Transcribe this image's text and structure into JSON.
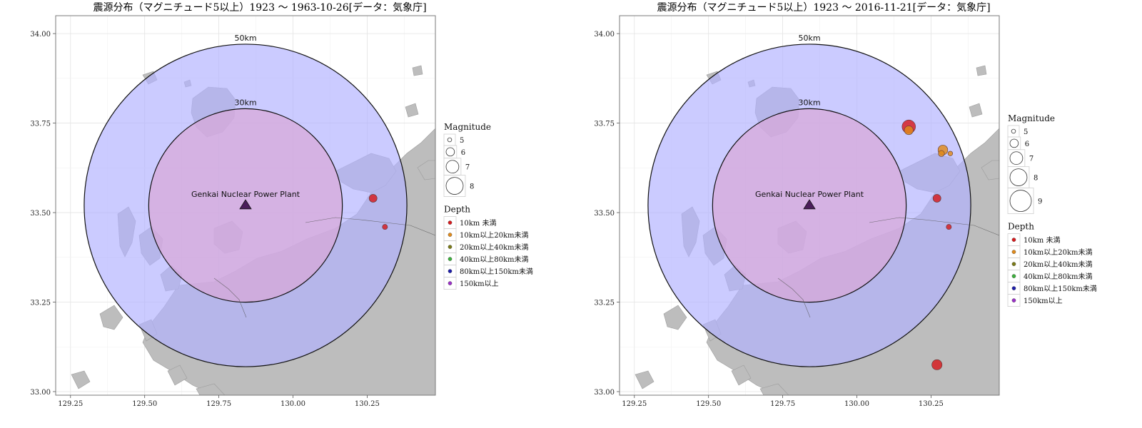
{
  "chart_data": [
    {
      "type": "scatter",
      "title": "震源分布（マグニチュード5以上）1923 ～ 1963-10-26[データ：気象庁]",
      "xlim": [
        129.2,
        130.48
      ],
      "ylim": [
        32.99,
        34.05
      ],
      "x_ticks": [
        "129.25",
        "129.50",
        "129.75",
        "130.00",
        "130.25"
      ],
      "y_ticks": [
        "33.00",
        "33.25",
        "33.50",
        "33.75",
        "34.00"
      ],
      "plant": {
        "name": "Genkai Nuclear Power Plant",
        "lon": 129.84,
        "lat": 33.52
      },
      "rings": [
        {
          "label": "50km",
          "radius_km": 50,
          "color": "#b3b3ff"
        },
        {
          "label": "30km",
          "radius_km": 30,
          "color": "#d8a8d8"
        }
      ],
      "legend_size": {
        "title": "Magnitude",
        "items": [
          "5",
          "6",
          "7",
          "8"
        ]
      },
      "legend_depth": {
        "title": "Depth",
        "items": [
          {
            "label": "10km 未満",
            "color": "#d7191c"
          },
          {
            "label": "10km以上20km未満",
            "color": "#e08a1a"
          },
          {
            "label": "20km以上40km未満",
            "color": "#7a7a16"
          },
          {
            "label": "40km以上80km未満",
            "color": "#3cb03c"
          },
          {
            "label": "80km以上150km未満",
            "color": "#1d1daa"
          },
          {
            "label": "150km以上",
            "color": "#9b30c8"
          }
        ]
      },
      "points": [
        {
          "lon": 130.27,
          "lat": 33.54,
          "mag": 5.8,
          "depth": "10km 未満"
        },
        {
          "lon": 130.31,
          "lat": 33.46,
          "mag": 5.2,
          "depth": "10km 未満"
        }
      ]
    },
    {
      "type": "scatter",
      "title": "震源分布（マグニチュード5以上）1923 ～ 2016-11-21[データ：気象庁]",
      "xlim": [
        129.2,
        130.48
      ],
      "ylim": [
        32.99,
        34.05
      ],
      "x_ticks": [
        "129.25",
        "129.50",
        "129.75",
        "130.00",
        "130.25"
      ],
      "y_ticks": [
        "33.00",
        "33.25",
        "33.50",
        "33.75",
        "34.00"
      ],
      "plant": {
        "name": "Genkai Nuclear Power Plant",
        "lon": 129.84,
        "lat": 33.52
      },
      "rings": [
        {
          "label": "50km",
          "radius_km": 50,
          "color": "#b3b3ff"
        },
        {
          "label": "30km",
          "radius_km": 30,
          "color": "#d8a8d8"
        }
      ],
      "legend_size": {
        "title": "Magnitude",
        "items": [
          "5",
          "6",
          "7",
          "8",
          "9"
        ]
      },
      "legend_depth": {
        "title": "Depth",
        "items": [
          {
            "label": "10km 未満",
            "color": "#d7191c"
          },
          {
            "label": "10km以上20km未満",
            "color": "#e08a1a"
          },
          {
            "label": "20km以上40km未満",
            "color": "#7a7a16"
          },
          {
            "label": "40km以上80km未満",
            "color": "#3cb03c"
          },
          {
            "label": "80km以上150km未満",
            "color": "#1d1daa"
          },
          {
            "label": "150km以上",
            "color": "#9b30c8"
          }
        ]
      },
      "points": [
        {
          "lon": 130.175,
          "lat": 33.74,
          "mag": 7.0,
          "depth": "10km 未満"
        },
        {
          "lon": 130.175,
          "lat": 33.73,
          "mag": 6.0,
          "depth": "10km以上20km未満"
        },
        {
          "lon": 130.29,
          "lat": 33.675,
          "mag": 6.2,
          "depth": "10km以上20km未満"
        },
        {
          "lon": 130.285,
          "lat": 33.665,
          "mag": 5.4,
          "depth": "10km以上20km未満"
        },
        {
          "lon": 130.315,
          "lat": 33.665,
          "mag": 5.1,
          "depth": "10km以上20km未満"
        },
        {
          "lon": 130.27,
          "lat": 33.54,
          "mag": 5.8,
          "depth": "10km 未満"
        },
        {
          "lon": 130.31,
          "lat": 33.46,
          "mag": 5.2,
          "depth": "10km 未満"
        },
        {
          "lon": 130.27,
          "lat": 33.075,
          "mag": 6.3,
          "depth": "10km 未満"
        }
      ]
    }
  ]
}
